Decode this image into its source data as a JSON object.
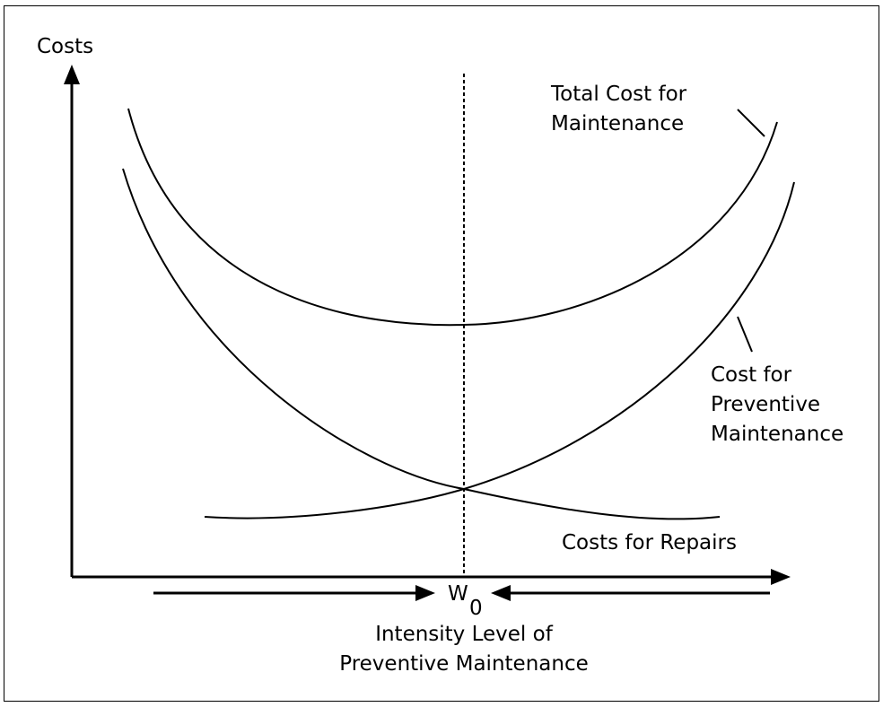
{
  "y_axis_label": "Costs",
  "curves": {
    "total": [
      "Total Cost for",
      "Maintenance"
    ],
    "preventive": [
      "Cost for",
      "Preventive",
      "Maintenance"
    ],
    "repairs": "Costs for Repairs"
  },
  "optimum_label": "W",
  "optimum_subscript": "0",
  "x_axis_label": [
    "Intensity Level of",
    "Preventive Maintenance"
  ]
}
